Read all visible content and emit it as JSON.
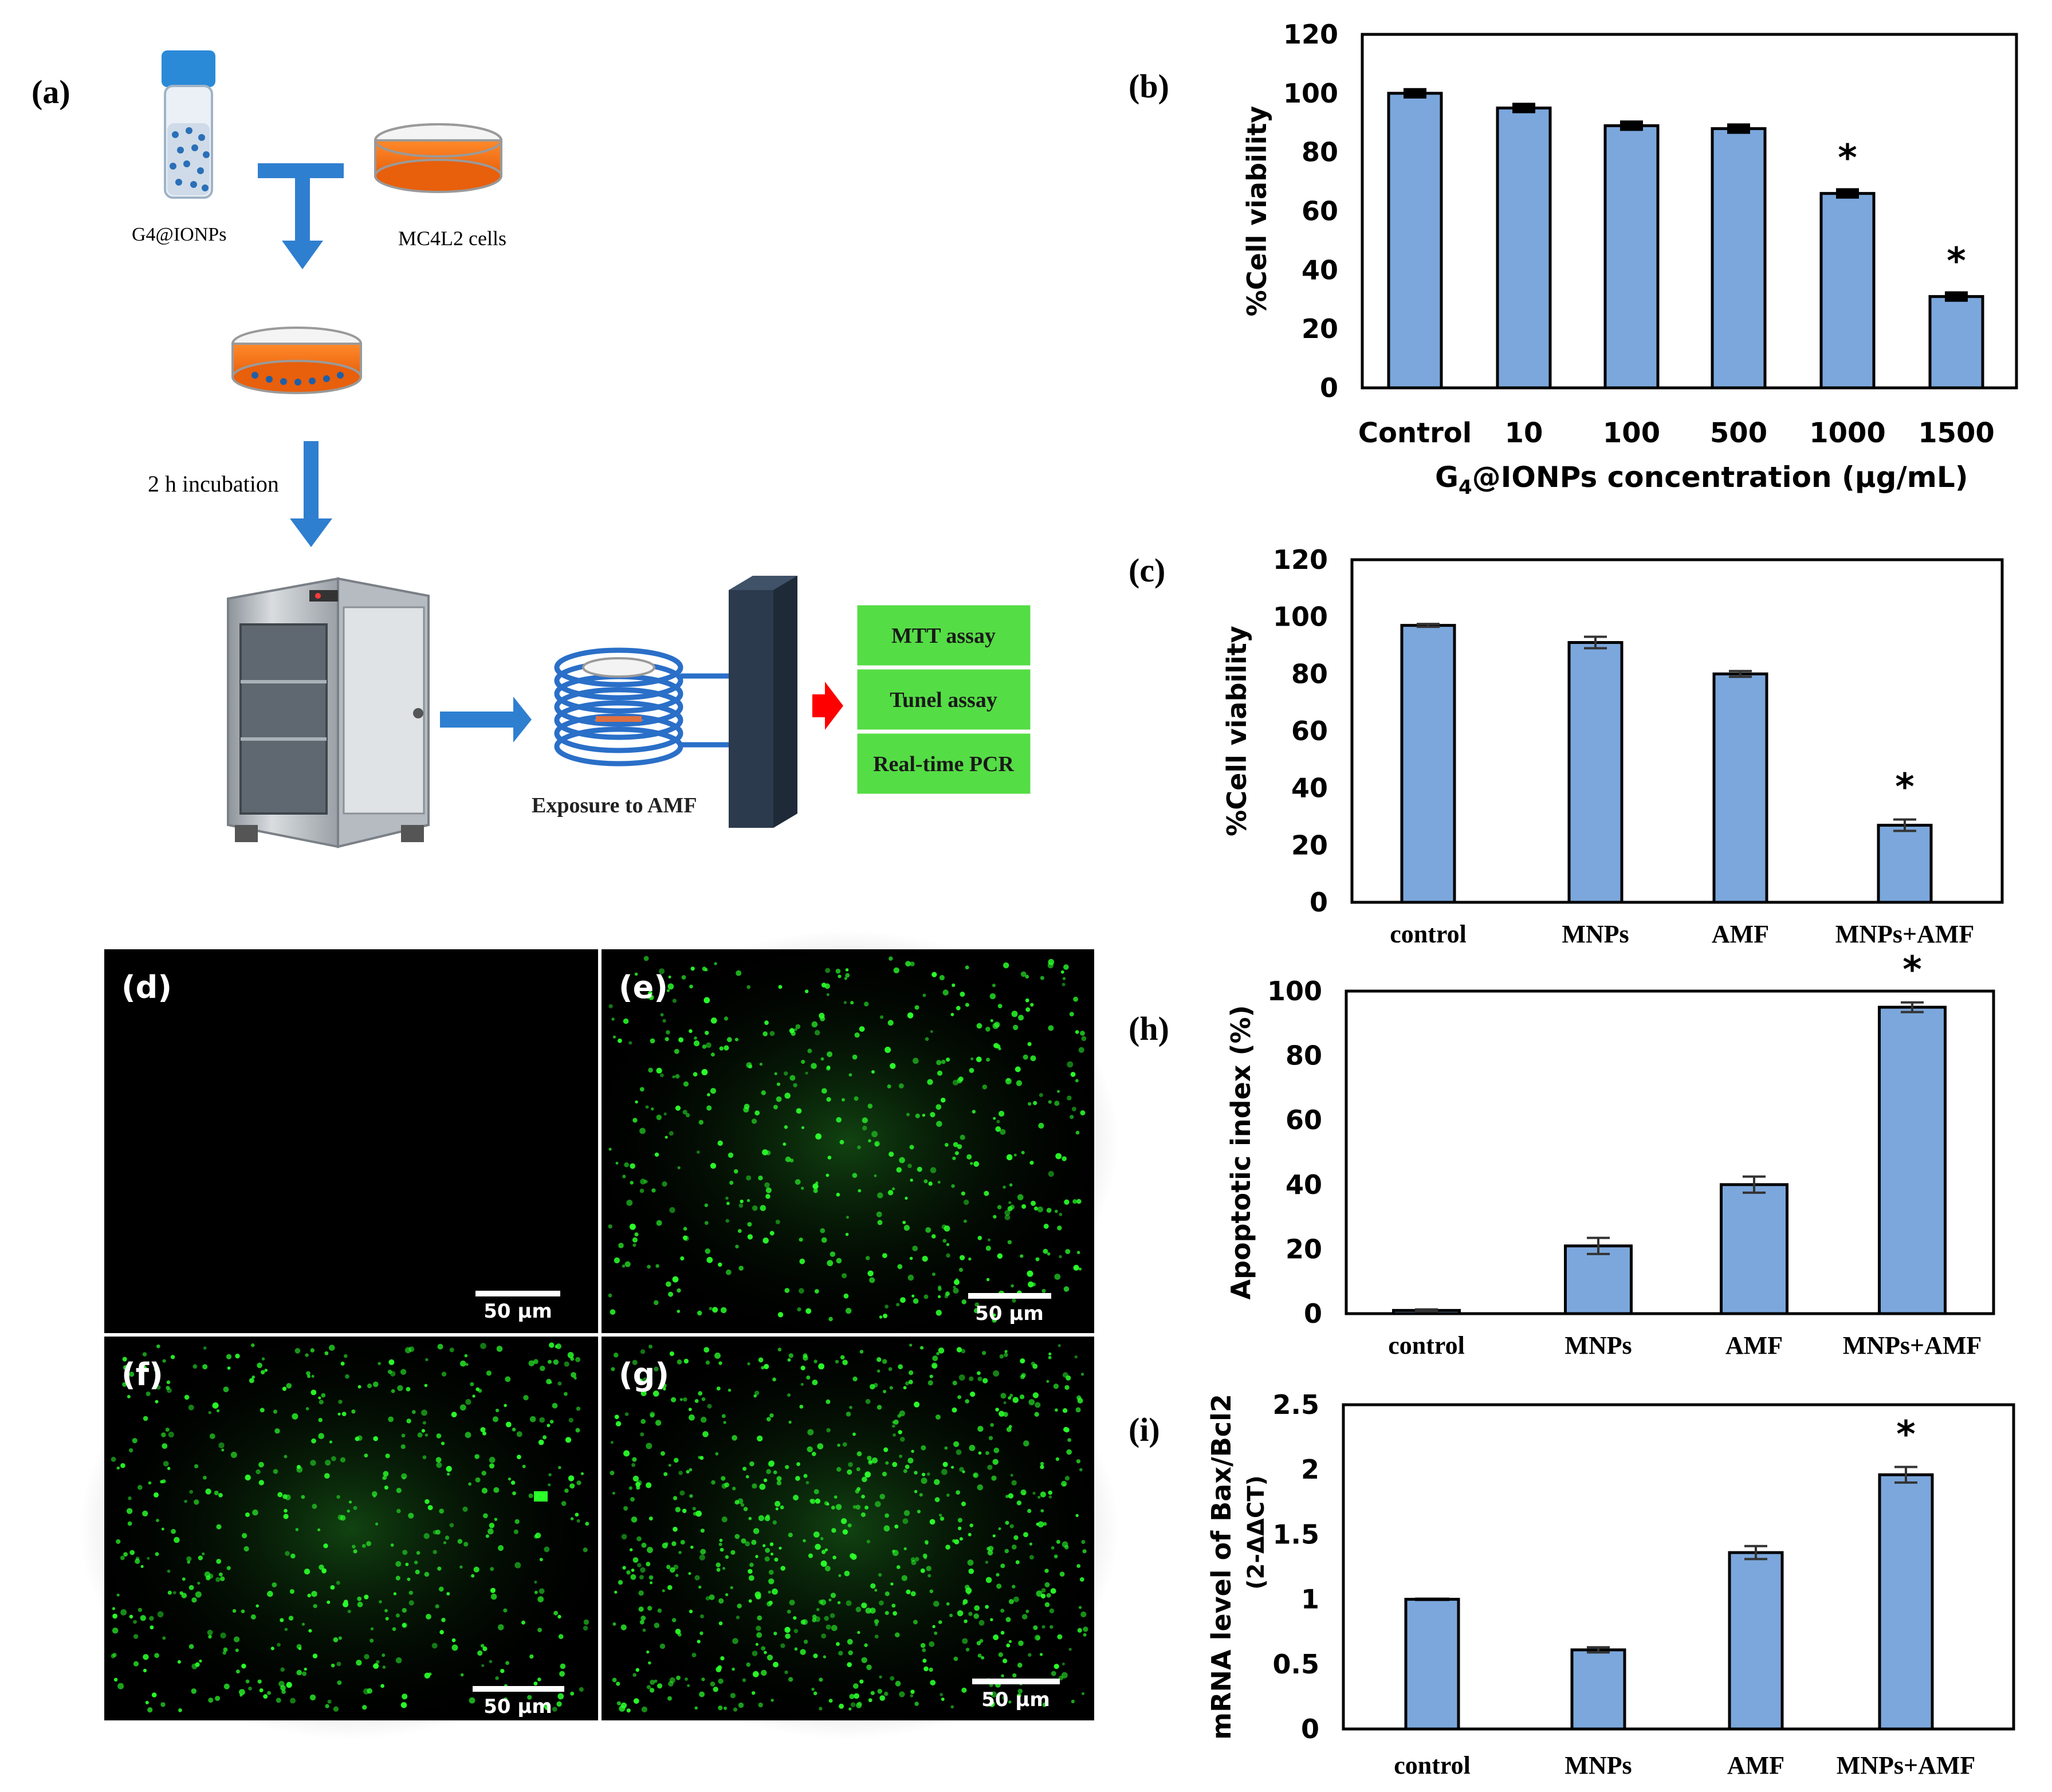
{
  "panel_labels": {
    "a": "(a)",
    "b": "(b)",
    "c": "(c)",
    "d": "(d)",
    "e": "(e)",
    "f": "(f)",
    "g": "(g)",
    "h": "(h)",
    "i": "(i)"
  },
  "schematic": {
    "np_label": "G4@IONPs",
    "cells_label": "MC4L2 cells",
    "incubation_label": "2 h incubation",
    "amf_label": "Exposure to AMF",
    "assays": [
      "MTT assay",
      "Tunel assay",
      "Real-time PCR"
    ]
  },
  "micrographs": {
    "scale_bar_label": "50 µm",
    "panels": [
      {
        "id": "d",
        "fluorescence_level": 0
      },
      {
        "id": "e",
        "fluorescence_level": 0.55
      },
      {
        "id": "f",
        "fluorescence_level": 0.6
      },
      {
        "id": "g",
        "fluorescence_level": 0.85
      }
    ]
  },
  "colors": {
    "bar_fill": "#7ba7dc",
    "fluorescence": "#2aff2a",
    "arrow_blue": "#2f7fd0",
    "arrow_red": "#ff0000",
    "assay_box": "#55dd45"
  },
  "chart_data": [
    {
      "id": "b",
      "type": "bar",
      "ylabel": "%Cell viability",
      "xlabel_prefix": "G",
      "xlabel_sub": "4",
      "xlabel_suffix": "@IONPs concentration (µg/mL)",
      "categories": [
        "Control",
        "10",
        "100",
        "500",
        "1000",
        "1500"
      ],
      "values": [
        100,
        95,
        89,
        88,
        66,
        31
      ],
      "errors": [
        1,
        1,
        1,
        1,
        1,
        1
      ],
      "significant": [
        false,
        false,
        false,
        false,
        true,
        true
      ],
      "ylim": [
        0,
        120
      ],
      "yticks": [
        0,
        20,
        40,
        60,
        80,
        100,
        120
      ]
    },
    {
      "id": "c",
      "type": "bar",
      "ylabel": "%Cell viability",
      "categories": [
        "control",
        "MNPs",
        "AMF",
        "MNPs+AMF"
      ],
      "values": [
        97,
        91,
        80,
        27
      ],
      "errors": [
        0.5,
        2,
        1,
        2
      ],
      "significant": [
        false,
        false,
        false,
        true
      ],
      "ylim": [
        0,
        120
      ],
      "yticks": [
        0,
        20,
        40,
        60,
        80,
        100,
        120
      ]
    },
    {
      "id": "h",
      "type": "bar",
      "ylabel": "Apoptotic index (%)",
      "categories": [
        "control",
        "MNPs",
        "AMF",
        "MNPs+AMF"
      ],
      "values": [
        1,
        21,
        40,
        95
      ],
      "errors": [
        0.3,
        2.5,
        2.5,
        1.5
      ],
      "significant": [
        false,
        false,
        false,
        true
      ],
      "ylim": [
        0,
        100
      ],
      "yticks": [
        0,
        20,
        40,
        60,
        80,
        100
      ]
    },
    {
      "id": "i",
      "type": "bar",
      "ylabel": "mRNA level of Bax/Bcl2",
      "ylabel2": "(2-ΔΔCT)",
      "categories": [
        "control",
        "MNPs",
        "AMF",
        "MNPs+AMF"
      ],
      "values": [
        1.0,
        0.61,
        1.36,
        1.96
      ],
      "errors": [
        0,
        0.02,
        0.05,
        0.06
      ],
      "significant": [
        false,
        false,
        false,
        true
      ],
      "ylim": [
        0,
        2.5
      ],
      "yticks": [
        0,
        0.5,
        1,
        1.5,
        2,
        2.5
      ]
    }
  ]
}
